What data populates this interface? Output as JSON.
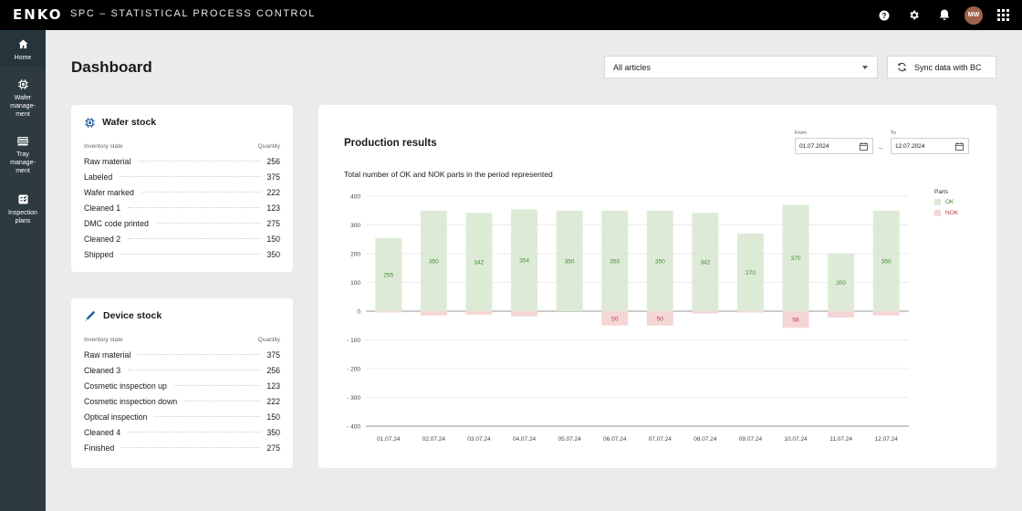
{
  "app": {
    "logo_text": "ENKO",
    "title": "SPC – STATISTICAL PROCESS CONTROL",
    "avatar_initials": "MW"
  },
  "sidebar": {
    "items": [
      {
        "label": "Home",
        "icon": "home-icon",
        "active": true
      },
      {
        "label": "Wafer manage-ment",
        "icon": "wafer-chip-icon",
        "active": false
      },
      {
        "label": "Tray manage-ment",
        "icon": "tray-icon",
        "active": false
      },
      {
        "label": "Inspection plans",
        "icon": "inspection-icon",
        "active": false
      }
    ]
  },
  "header": {
    "page_title": "Dashboard",
    "article_select_value": "All articles",
    "sync_button_label": "Sync data with BC"
  },
  "wafer_stock": {
    "title": "Wafer stock",
    "col_state": "Inventory state",
    "col_qty": "Quantity",
    "rows": [
      {
        "state": "Raw material",
        "qty": "256"
      },
      {
        "state": "Labeled",
        "qty": "375"
      },
      {
        "state": "Wafer marked",
        "qty": "222"
      },
      {
        "state": "Cleaned 1",
        "qty": "123"
      },
      {
        "state": "DMC code printed",
        "qty": "275"
      },
      {
        "state": "Cleaned 2",
        "qty": "150"
      },
      {
        "state": "Shipped",
        "qty": "350"
      }
    ]
  },
  "device_stock": {
    "title": "Device stock",
    "col_state": "Inventory state",
    "col_qty": "Quantity",
    "rows": [
      {
        "state": "Raw material",
        "qty": "375"
      },
      {
        "state": "Cleaned 3",
        "qty": "256"
      },
      {
        "state": "Cosmetic inspection up",
        "qty": "123"
      },
      {
        "state": "Cosmetic inspection down",
        "qty": "222"
      },
      {
        "state": "Optical inspection",
        "qty": "150"
      },
      {
        "state": "Cleaned 4",
        "qty": "350"
      },
      {
        "state": "Finished",
        "qty": "275"
      }
    ]
  },
  "production": {
    "title": "Production results",
    "from_label": "From",
    "from_value": "01.07.2024",
    "to_label": "To",
    "to_value": "12.07.2024",
    "date_separator": "–",
    "legend_title": "Parts"
  },
  "colors": {
    "ok_fill": "#ddebd6",
    "ok_text": "#3f8a2e",
    "nok_fill": "#f5d6d6",
    "nok_text": "#c23a3a"
  },
  "chart_data": {
    "type": "bar",
    "title": "Total number of OK and NOK parts in the period represented",
    "xlabel": "",
    "ylabel": "",
    "ylim": [
      -400,
      400
    ],
    "yticks": [
      400,
      300,
      200,
      100,
      0,
      -100,
      -200,
      -300,
      -400
    ],
    "ytick_labels": [
      "400",
      "300",
      "200",
      "100",
      "0",
      "- 100",
      "- 200",
      "- 300",
      "- 400"
    ],
    "grid": true,
    "legend_position": "top-right",
    "categories": [
      "01.07.24",
      "02.07.24",
      "03.07.24",
      "04.07.24",
      "05.07.24",
      "06.07.24",
      "07.07.24",
      "08.07.24",
      "09.07.24",
      "10.07.24",
      "11.07.24",
      "12.07.24"
    ],
    "series": [
      {
        "name": "OK",
        "values": [
          255,
          350,
          342,
          354,
          350,
          350,
          350,
          342,
          270,
          370,
          200,
          350
        ]
      },
      {
        "name": "NOK",
        "values": [
          -5,
          -15,
          -12,
          -18,
          0,
          -50,
          -50,
          -8,
          -5,
          -58,
          -22,
          -15
        ]
      }
    ],
    "ok_labels_shown": true,
    "nok_labels_shown_for": [
      "06.07.24",
      "07.07.24",
      "10.07.24"
    ]
  }
}
